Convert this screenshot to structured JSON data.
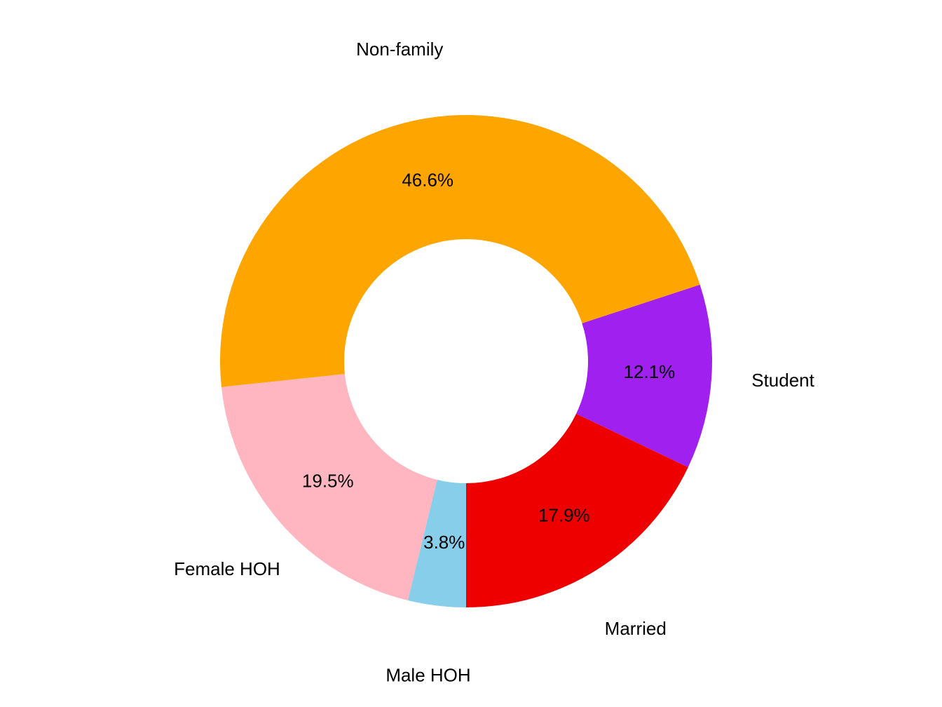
{
  "chart_data": {
    "type": "donut",
    "categories": [
      "Married",
      "Student",
      "Non-family",
      "Female HOH",
      "Male HOH"
    ],
    "values": [
      17.9,
      12.1,
      46.6,
      19.5,
      3.8
    ],
    "value_labels": [
      "17.9%",
      "12.1%",
      "46.6%",
      "19.5%",
      "3.8%"
    ],
    "colors": [
      "#EE0000",
      "#A020F0",
      "#FFA500",
      "#FFB6C1",
      "#87CEEB"
    ]
  }
}
